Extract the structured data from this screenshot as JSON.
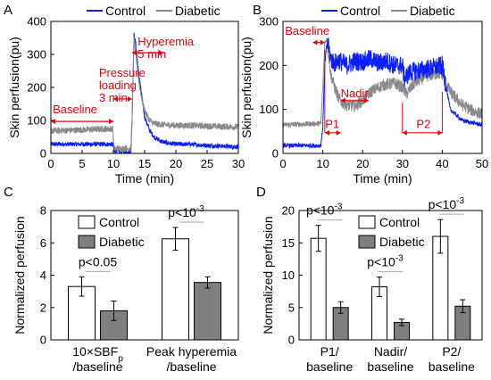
{
  "colors": {
    "control": "#0a1eff",
    "diabetic": "#8a8a8a",
    "annotation": "#e8000b",
    "bar_control": "#ffffff",
    "bar_diabetic": "#7f7f7f"
  },
  "chart_data": [
    {
      "id": "A",
      "panel_label": "A",
      "type": "line",
      "xlabel": "Time (min)",
      "ylabel": "Skin perfusion(pu)",
      "xlim": [
        0,
        30
      ],
      "ylim": [
        0,
        400
      ],
      "xticks": [
        0,
        5,
        10,
        15,
        20,
        25,
        30
      ],
      "yticks": [
        0,
        100,
        200,
        300,
        400
      ],
      "legend": [
        "Control",
        "Diabetic"
      ],
      "series": [
        {
          "name": "Control",
          "x": [
            0,
            9.9,
            10.1,
            12.8,
            13.0,
            13.3,
            13.6,
            14.0,
            14.5,
            15.0,
            15.8,
            16.5,
            17.5,
            18.5,
            20,
            22,
            25,
            30
          ],
          "y": [
            28,
            28,
            6,
            6,
            110,
            360,
            330,
            250,
            180,
            110,
            70,
            50,
            38,
            32,
            28,
            28,
            24,
            20
          ]
        },
        {
          "name": "Diabetic",
          "x": [
            0,
            9.9,
            10.1,
            12.8,
            13.0,
            13.3,
            13.6,
            14.0,
            14.5,
            15.0,
            15.8,
            16.5,
            17.5,
            18.5,
            20,
            22,
            25,
            30
          ],
          "y": [
            68,
            75,
            15,
            15,
            110,
            345,
            300,
            230,
            170,
            130,
            100,
            90,
            88,
            86,
            85,
            85,
            83,
            80
          ]
        }
      ],
      "annotations": [
        {
          "lines": [
            "Baseline"
          ],
          "x": 0.3,
          "y": 122
        },
        {
          "lines": [
            "Pressure",
            "loading",
            "3 min"
          ],
          "x": 7.7,
          "y": 232
        },
        {
          "lines": [
            "Hyperemia",
            "5 min"
          ],
          "x": 13.9,
          "y": 327
        }
      ]
    },
    {
      "id": "B",
      "panel_label": "B",
      "type": "line",
      "xlabel": "Time (min)",
      "ylabel": "Skin perfusion(pu)",
      "xlim": [
        0,
        50
      ],
      "ylim": [
        0,
        300
      ],
      "xticks": [
        0,
        10,
        20,
        30,
        40,
        50
      ],
      "yticks": [
        0,
        100,
        200,
        300
      ],
      "legend": [
        "Control",
        "Diabetic"
      ],
      "series": [
        {
          "name": "Control",
          "x": [
            0,
            9.5,
            10.0,
            10.5,
            11.0,
            11.5,
            12,
            13,
            14,
            16,
            18,
            20,
            22,
            24,
            26,
            28,
            30,
            30.5,
            32,
            35,
            38,
            40,
            41,
            42,
            45,
            50
          ],
          "y": [
            18,
            18,
            60,
            200,
            250,
            240,
            215,
            205,
            212,
            200,
            210,
            208,
            215,
            205,
            210,
            200,
            200,
            170,
            185,
            190,
            195,
            200,
            150,
            100,
            75,
            65
          ]
        },
        {
          "name": "Diabetic",
          "x": [
            0,
            9.5,
            10.0,
            10.5,
            11.0,
            11.5,
            12,
            13,
            14,
            15,
            16,
            18,
            20,
            22,
            25,
            28,
            30,
            31,
            33,
            36,
            39,
            40,
            42,
            45,
            48,
            50
          ],
          "y": [
            65,
            68,
            150,
            250,
            262,
            220,
            180,
            150,
            125,
            115,
            110,
            108,
            120,
            140,
            155,
            160,
            150,
            135,
            160,
            175,
            182,
            180,
            140,
            110,
            95,
            90
          ]
        }
      ],
      "annotations": [
        {
          "lines": [
            "Baseline"
          ],
          "x": 0.5,
          "y": 270
        },
        {
          "lines": [
            "Nadir"
          ],
          "x": 14.5,
          "y": 128
        },
        {
          "lines": [
            "P1"
          ],
          "x": 10.6,
          "y": 58
        },
        {
          "lines": [
            "P2"
          ],
          "x": 33.5,
          "y": 58
        }
      ]
    },
    {
      "id": "C",
      "panel_label": "C",
      "type": "bar",
      "ylabel": "Normalized perfusion",
      "ylim": [
        0,
        8
      ],
      "yticks": [
        0,
        2,
        4,
        6,
        8
      ],
      "categories": [
        [
          "10×SBF",
          "/baseline"
        ],
        [
          "Peak hyperemia",
          "/baseline"
        ]
      ],
      "legend": [
        "Control",
        "Diabetic"
      ],
      "series": [
        {
          "name": "Control",
          "values": [
            3.3,
            6.25
          ],
          "errors": [
            0.6,
            0.7
          ]
        },
        {
          "name": "Diabetic",
          "values": [
            1.8,
            3.55
          ],
          "errors": [
            0.6,
            0.35
          ]
        }
      ],
      "pvalues": [
        "p<0.05",
        "p<10"
      ],
      "pvalue_exponents": [
        "",
        "-3"
      ],
      "sbf_subscript": "p"
    },
    {
      "id": "D",
      "panel_label": "D",
      "type": "bar",
      "ylabel": "Normalized perfusion",
      "ylim": [
        0,
        20
      ],
      "yticks": [
        0,
        5,
        10,
        15,
        20
      ],
      "categories": [
        [
          "P1/",
          "baseline"
        ],
        [
          "Nadir/",
          "baseline"
        ],
        [
          "P2/",
          "baseline"
        ]
      ],
      "legend": [
        "Control",
        "Diabetic"
      ],
      "series": [
        {
          "name": "Control",
          "values": [
            15.7,
            8.2,
            16.0
          ],
          "errors": [
            2.0,
            1.5,
            2.6
          ]
        },
        {
          "name": "Diabetic",
          "values": [
            5.0,
            2.7,
            5.2
          ],
          "errors": [
            0.9,
            0.5,
            1.0
          ]
        }
      ],
      "pvalues": [
        "p<10",
        "p<10",
        "p<10"
      ],
      "pvalue_exponents": [
        "-3",
        "-3",
        "-3"
      ]
    }
  ]
}
